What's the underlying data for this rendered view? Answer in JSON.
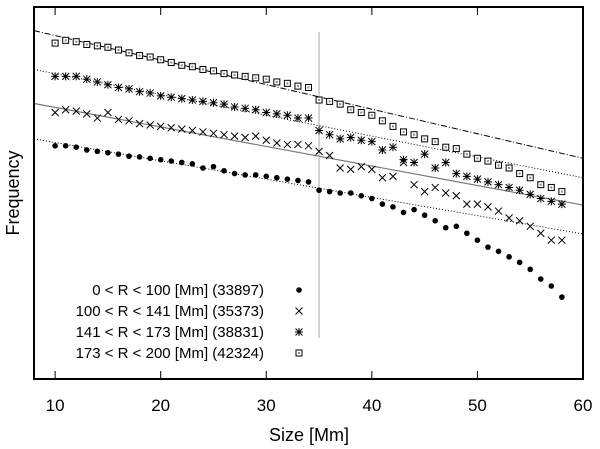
{
  "chart_data": {
    "type": "scatter",
    "title": "",
    "xlabel": "Size [Mm]",
    "ylabel": "Frequency",
    "xlim": [
      8,
      60
    ],
    "ylim": [
      -16.8,
      10.0
    ],
    "xticks": [
      10,
      20,
      30,
      40,
      50,
      60
    ],
    "x_tick_labels": [
      "10",
      "20",
      "30",
      "40",
      "50",
      "60"
    ],
    "y_axis_note": "logarithmic frequency, tick labels not shown",
    "vertical_line_x": 35,
    "legend_position": "bottom-left",
    "series": [
      {
        "name": "0 < R < 100 [Mm] (33897)",
        "marker": "filled-circle",
        "x": [
          10,
          11,
          12,
          13,
          14,
          15,
          16,
          17,
          18,
          19,
          20,
          21,
          22,
          23,
          24,
          25,
          26,
          27,
          28,
          29,
          30,
          31,
          32,
          33,
          34,
          35,
          36,
          37,
          38,
          39,
          40,
          41,
          42,
          43,
          44,
          45,
          46,
          47,
          48,
          49,
          50,
          51,
          52,
          53,
          54,
          55,
          56,
          57,
          58
        ],
        "y": [
          0.0,
          0.0,
          -0.1,
          -0.3,
          -0.4,
          -0.5,
          -0.6,
          -0.75,
          -0.8,
          -0.9,
          -1.0,
          -1.1,
          -1.2,
          -1.3,
          -1.6,
          -1.5,
          -1.8,
          -2.0,
          -2.1,
          -2.1,
          -2.2,
          -2.3,
          -2.4,
          -2.5,
          -2.6,
          -3.2,
          -3.3,
          -3.4,
          -3.4,
          -3.6,
          -3.8,
          -4.2,
          -4.4,
          -4.8,
          -4.6,
          -5.0,
          -5.4,
          -5.9,
          -5.8,
          -6.3,
          -6.8,
          -7.3,
          -7.6,
          -8.0,
          -8.4,
          -8.9,
          -9.6,
          -10.1,
          -10.9
        ]
      },
      {
        "name": "100 < R < 141 [Mm] (35373)",
        "marker": "x-cross",
        "x": [
          10,
          11,
          12,
          13,
          14,
          15,
          16,
          17,
          18,
          19,
          20,
          21,
          22,
          23,
          24,
          25,
          26,
          27,
          28,
          29,
          30,
          31,
          32,
          33,
          34,
          35,
          36,
          37,
          38,
          39,
          40,
          41,
          42,
          43,
          44,
          45,
          46,
          47,
          48,
          49,
          50,
          51,
          52,
          53,
          54,
          55,
          56,
          57,
          58
        ],
        "y": [
          2.4,
          2.6,
          2.5,
          2.3,
          2.0,
          2.4,
          1.9,
          1.8,
          1.6,
          1.5,
          1.4,
          1.3,
          1.2,
          1.1,
          1.0,
          0.9,
          0.8,
          0.7,
          0.6,
          0.7,
          0.4,
          0.2,
          0.1,
          0.1,
          0.0,
          -0.4,
          -0.7,
          -1.6,
          -1.7,
          -1.5,
          -1.7,
          -2.3,
          -2.2,
          -1.2,
          -2.8,
          -3.3,
          -3.0,
          -3.4,
          -3.6,
          -4.2,
          -4.2,
          -4.4,
          -4.7,
          -5.2,
          -5.4,
          -5.8,
          -6.3,
          -6.8,
          -6.8
        ]
      },
      {
        "name": "141 < R < 173 [Mm] (38831)",
        "marker": "star",
        "x": [
          10,
          11,
          12,
          13,
          14,
          15,
          16,
          17,
          18,
          19,
          20,
          21,
          22,
          23,
          24,
          25,
          26,
          27,
          28,
          29,
          30,
          31,
          32,
          33,
          34,
          35,
          36,
          37,
          38,
          39,
          40,
          41,
          42,
          43,
          44,
          45,
          46,
          47,
          48,
          49,
          50,
          51,
          52,
          53,
          54,
          55,
          56,
          57,
          58
        ],
        "y": [
          5.0,
          5.0,
          5.0,
          4.8,
          4.6,
          4.4,
          4.2,
          4.1,
          3.9,
          3.8,
          3.6,
          3.5,
          3.4,
          3.3,
          3.2,
          3.1,
          3.0,
          2.8,
          2.7,
          2.6,
          2.4,
          2.3,
          2.2,
          2.0,
          2.0,
          1.1,
          0.8,
          0.5,
          0.6,
          0.4,
          0.3,
          -0.3,
          -0.1,
          -1.0,
          -1.2,
          -0.6,
          -1.6,
          -1.2,
          -2.0,
          -2.2,
          -2.4,
          -2.6,
          -2.8,
          -3.0,
          -3.2,
          -3.5,
          -3.8,
          -4.0,
          -4.2
        ]
      },
      {
        "name": "173 < R < 200 [Mm] (42324)",
        "marker": "open-square",
        "x": [
          10,
          11,
          12,
          13,
          14,
          15,
          16,
          17,
          18,
          19,
          20,
          21,
          22,
          23,
          24,
          25,
          26,
          27,
          28,
          29,
          30,
          31,
          32,
          33,
          34,
          35,
          36,
          37,
          38,
          39,
          40,
          41,
          42,
          43,
          44,
          45,
          46,
          47,
          48,
          49,
          50,
          51,
          52,
          53,
          54,
          55,
          56,
          57,
          58
        ],
        "y": [
          7.4,
          7.6,
          7.5,
          7.3,
          7.2,
          7.1,
          6.9,
          6.7,
          6.5,
          6.4,
          6.2,
          6.0,
          5.8,
          5.7,
          5.5,
          5.4,
          5.2,
          5.1,
          5.0,
          4.9,
          4.8,
          4.6,
          4.5,
          4.3,
          4.2,
          3.3,
          3.2,
          3.0,
          2.6,
          2.4,
          2.2,
          1.8,
          1.4,
          1.0,
          0.8,
          0.5,
          0.3,
          -0.1,
          -0.2,
          -0.6,
          -0.9,
          -1.1,
          -1.4,
          -1.6,
          -2.0,
          -2.3,
          -2.8,
          -3.0,
          -3.3
        ]
      }
    ],
    "fit_lines": [
      {
        "name": "fit 0 < R < 100",
        "style": "dotted",
        "x": [
          8,
          60
        ],
        "y": [
          0.5,
          -6.35
        ]
      },
      {
        "name": "fit 100 < R < 141",
        "style": "solid-gray",
        "x": [
          8,
          60
        ],
        "y": [
          3.05,
          -4.27
        ]
      },
      {
        "name": "fit 141 < R < 173",
        "style": "dotted",
        "x": [
          8,
          60
        ],
        "y": [
          5.5,
          -2.3
        ]
      },
      {
        "name": "fit 173 < R < 200",
        "style": "dashed",
        "x": [
          8,
          60
        ],
        "y": [
          8.3,
          -0.9
        ]
      }
    ]
  }
}
